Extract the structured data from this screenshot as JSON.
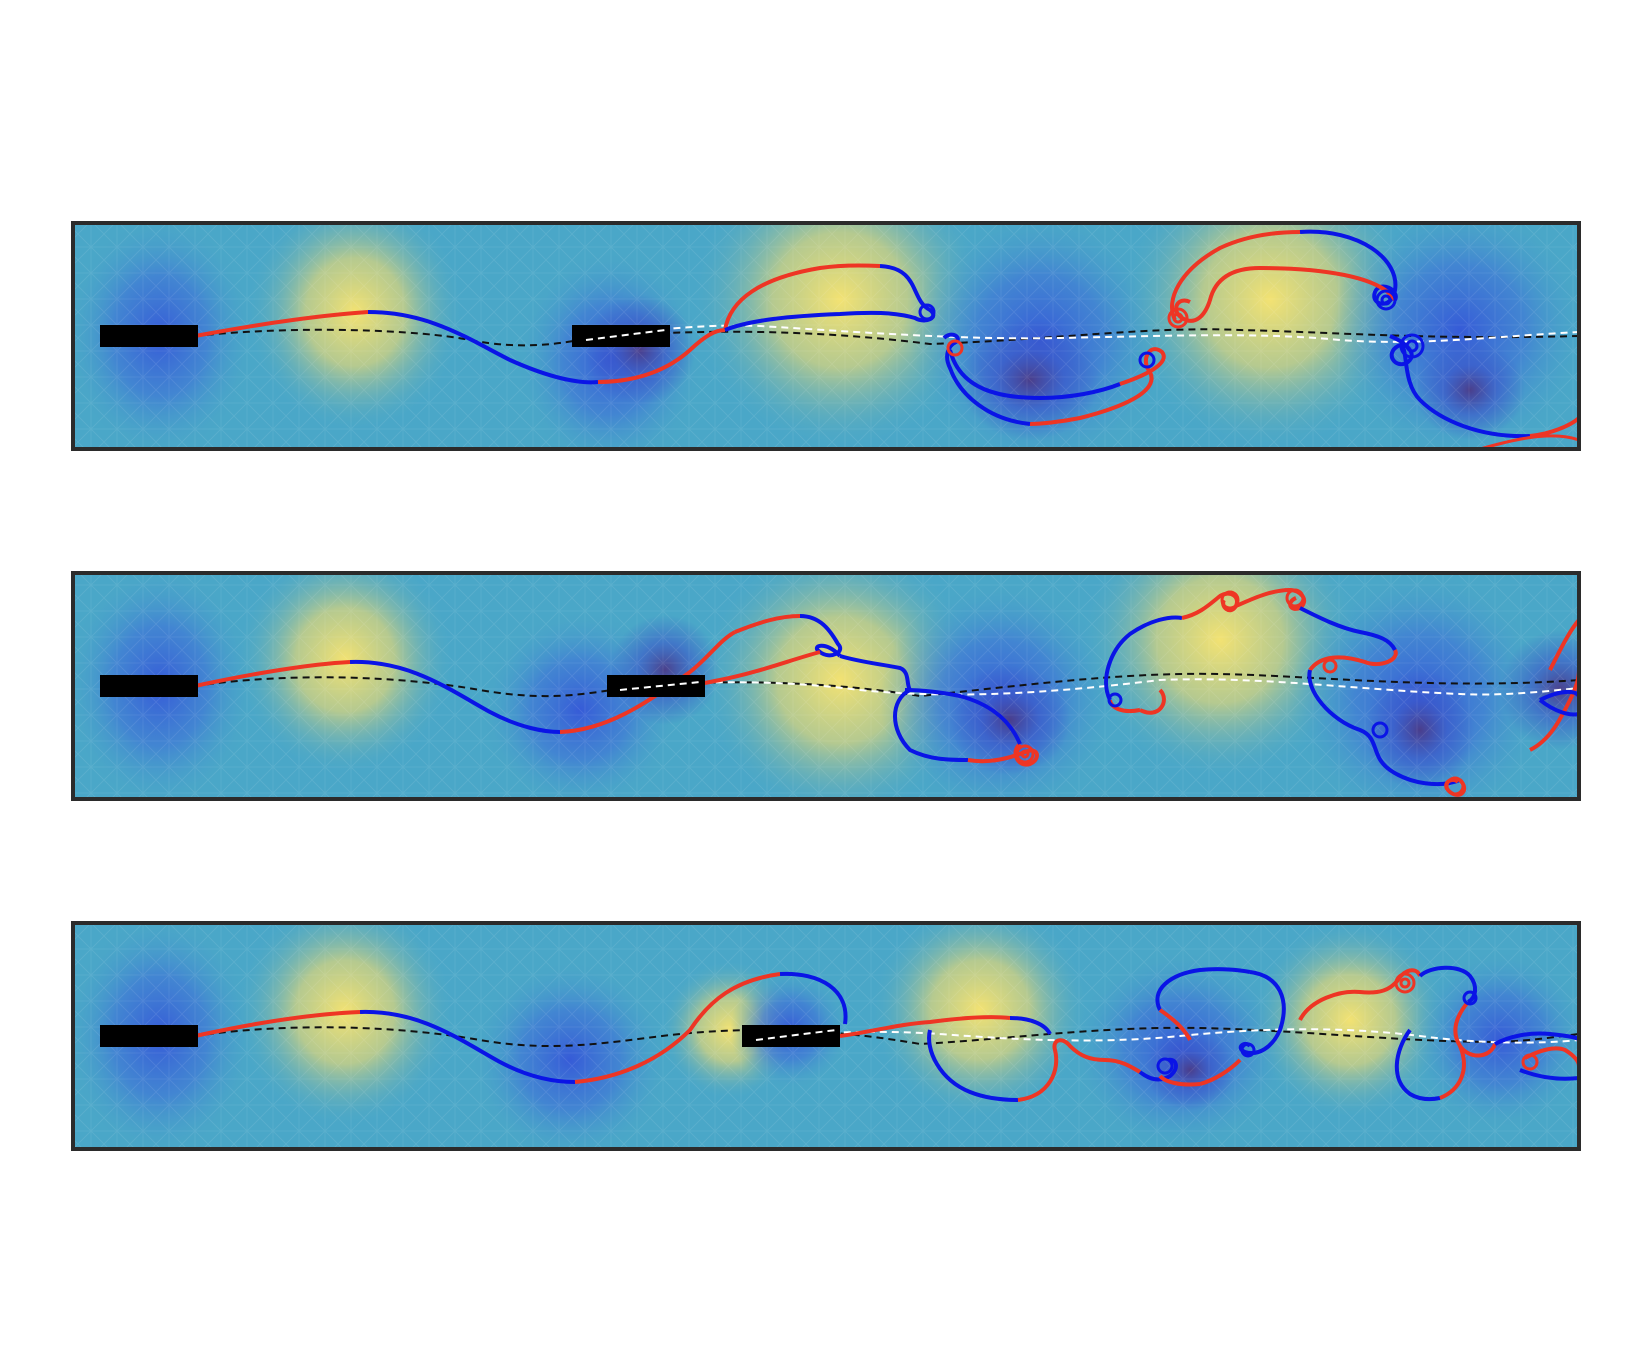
{
  "figure": {
    "panel_count": 3,
    "colors": {
      "background_low": "#3a6fd8",
      "background_mid": "#4aa7c8",
      "background_high": "#f6e27a",
      "vortex_core_dark": "#4a3a8a",
      "frame": "#2b2b2b",
      "plate": "#000000",
      "sheet_a": "#ee3524",
      "sheet_b": "#0a14e6",
      "wake_line_dark": "#111111",
      "wake_line_light": "#ffffff"
    },
    "panels": [
      {
        "name": "top",
        "second_plate": "near",
        "wake": "developing"
      },
      {
        "name": "middle",
        "second_plate": "mid",
        "wake": "developing"
      },
      {
        "name": "bottom",
        "second_plate": "far",
        "wake": "developing"
      }
    ]
  }
}
